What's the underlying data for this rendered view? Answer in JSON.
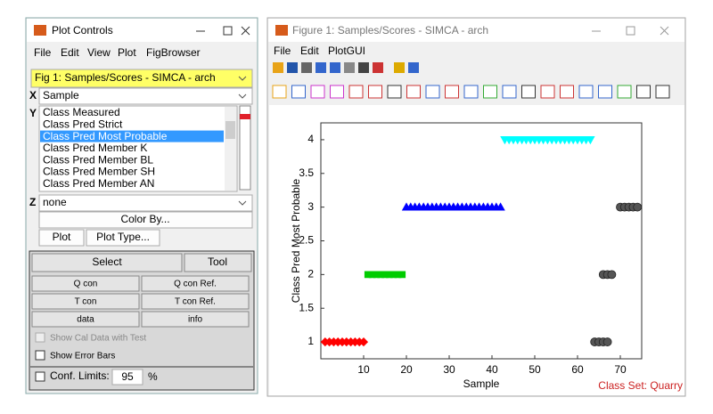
{
  "plot_controls": {
    "title": "Plot Controls",
    "menu": [
      "File",
      "Edit",
      "View",
      "Plot",
      "FigBrowser"
    ],
    "figure_select": "Fig 1: Samples/Scores - SIMCA - arch",
    "x_label": "X",
    "x_value": "Sample",
    "y_label": "Y",
    "y_list": [
      "Class Measured",
      "Class Pred Strict",
      "Class Pred Most Probable",
      "Class Pred Member K",
      "Class Pred Member BL",
      "Class Pred Member SH",
      "Class Pred Member AN"
    ],
    "y_selected": 2,
    "z_label": "Z",
    "z_value": "none",
    "color_by": "Color By...",
    "plot": "Plot",
    "plot_type": "Plot Type...",
    "select": "Select",
    "tool": "Tool",
    "buttons": [
      [
        "Q con",
        "Q con Ref."
      ],
      [
        "T con",
        "T con Ref."
      ],
      [
        "data",
        "info"
      ]
    ],
    "show_cal": "Show Cal Data with Test",
    "show_error_bars": "Show Error Bars",
    "conf_limits": "Conf. Limits:",
    "conf_value": 95,
    "percent": "%"
  },
  "figure": {
    "title": "Figure 1: Samples/Scores - SIMCA - arch",
    "menu": [
      "File",
      "Edit",
      "PlotGUI"
    ]
  },
  "chart_data": {
    "type": "scatter",
    "xlabel": "Sample",
    "ylabel": "Class Pred Most Probable",
    "annotation": "Class Set: Quarry",
    "xlim": [
      0,
      75
    ],
    "ylim": [
      0.75,
      4.25
    ],
    "xticks": [
      10,
      20,
      30,
      40,
      50,
      60,
      70
    ],
    "yticks": [
      1,
      1.5,
      2,
      2.5,
      3,
      3.5,
      4
    ],
    "series": [
      {
        "color": "#ff0000",
        "marker": "diamond",
        "x": [
          1,
          2,
          3,
          4,
          5,
          6,
          7,
          8,
          9,
          10
        ],
        "values": [
          1,
          1,
          1,
          1,
          1,
          1,
          1,
          1,
          1,
          1
        ]
      },
      {
        "color": "#00cc00",
        "marker": "square",
        "x": [
          11,
          12,
          13,
          14,
          15,
          16,
          17,
          18,
          19
        ],
        "values": [
          2,
          2,
          2,
          2,
          2,
          2,
          2,
          2,
          2
        ]
      },
      {
        "color": "#0000ff",
        "marker": "triangle-up",
        "x": [
          20,
          21,
          22,
          23,
          24,
          25,
          26,
          27,
          28,
          29,
          30,
          31,
          32,
          33,
          34,
          35,
          36,
          37,
          38,
          39,
          40,
          41,
          42
        ],
        "values": [
          3,
          3,
          3,
          3,
          3,
          3,
          3,
          3,
          3,
          3,
          3,
          3,
          3,
          3,
          3,
          3,
          3,
          3,
          3,
          3,
          3,
          3,
          3
        ]
      },
      {
        "color": "#00ffff",
        "marker": "triangle-down",
        "x": [
          43,
          44,
          45,
          46,
          47,
          48,
          49,
          50,
          51,
          52,
          53,
          54,
          55,
          56,
          57,
          58,
          59,
          60,
          61,
          62,
          63
        ],
        "values": [
          4,
          4,
          4,
          4,
          4,
          4,
          4,
          4,
          4,
          4,
          4,
          4,
          4,
          4,
          4,
          4,
          4,
          4,
          4,
          4,
          4
        ]
      },
      {
        "color": "#555555",
        "marker": "circle",
        "x": [
          64,
          65,
          66,
          67,
          66,
          67,
          68,
          70,
          71,
          72,
          73,
          74
        ],
        "values": [
          1,
          1,
          1,
          1,
          2,
          2,
          2,
          3,
          3,
          3,
          3,
          3
        ]
      }
    ]
  }
}
